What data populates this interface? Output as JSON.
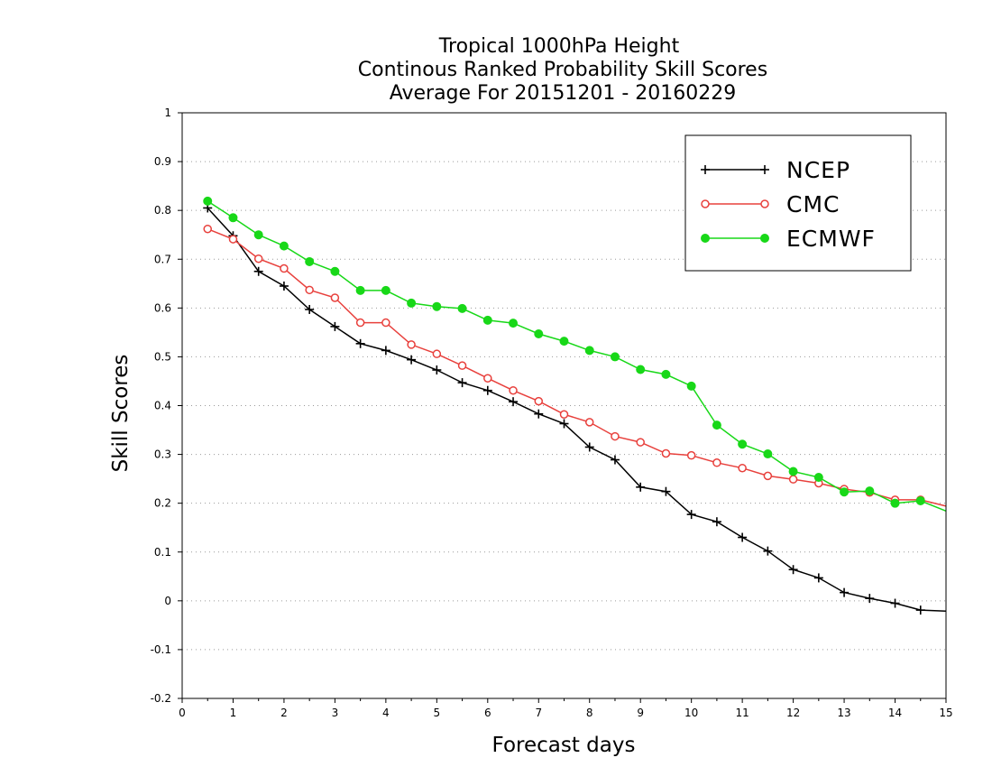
{
  "chart_data": {
    "type": "line",
    "title": [
      "Tropical 1000hPa Height",
      "Continous Ranked Probability Skill Scores",
      "Average For 20151201 - 20160229"
    ],
    "xlabel": "Forecast days",
    "ylabel": "Skill Scores",
    "xlim": [
      0,
      15
    ],
    "ylim": [
      -0.2,
      1
    ],
    "xticks": [
      0,
      1,
      2,
      3,
      4,
      5,
      6,
      7,
      8,
      9,
      10,
      11,
      12,
      13,
      14,
      15
    ],
    "yticks": [
      -0.2,
      -0.1,
      0,
      0.1,
      0.2,
      0.3,
      0.4,
      0.5,
      0.6,
      0.7,
      0.8,
      0.9,
      1
    ],
    "grid": "horizontal dotted",
    "legend_position": "top-right",
    "x": [
      0.5,
      1,
      1.5,
      2,
      2.5,
      3,
      3.5,
      4,
      4.5,
      5,
      5.5,
      6,
      6.5,
      7,
      7.5,
      8,
      8.5,
      9,
      9.5,
      10,
      10.5,
      11,
      11.5,
      12,
      12.5,
      13,
      13.5,
      14,
      14.5,
      15
    ],
    "series": [
      {
        "name": "NCEP",
        "color": "#000000",
        "marker": "plus",
        "values": [
          0.805,
          0.748,
          0.675,
          0.645,
          0.597,
          0.562,
          0.527,
          0.513,
          0.494,
          0.473,
          0.447,
          0.431,
          0.408,
          0.383,
          0.363,
          0.315,
          0.289,
          0.233,
          0.224,
          0.177,
          0.162,
          0.13,
          0.102,
          0.064,
          0.047,
          0.017,
          0.005,
          -0.005,
          -0.019,
          -0.021
        ]
      },
      {
        "name": "CMC",
        "color": "#e8403c",
        "marker": "open-circle",
        "values": [
          0.762,
          0.741,
          0.701,
          0.681,
          0.637,
          0.621,
          0.57,
          0.57,
          0.525,
          0.506,
          0.482,
          0.456,
          0.431,
          0.409,
          0.382,
          0.366,
          0.337,
          0.325,
          0.302,
          0.298,
          0.283,
          0.272,
          0.256,
          0.249,
          0.241,
          0.229,
          0.222,
          0.207,
          0.207,
          0.194
        ]
      },
      {
        "name": "ECMWF",
        "color": "#18d818",
        "marker": "filled-circle",
        "values": [
          0.819,
          0.785,
          0.75,
          0.727,
          0.695,
          0.675,
          0.636,
          0.636,
          0.61,
          0.603,
          0.599,
          0.575,
          0.569,
          0.547,
          0.532,
          0.513,
          0.5,
          0.474,
          0.464,
          0.44,
          0.36,
          0.321,
          0.301,
          0.265,
          0.253,
          0.223,
          0.225,
          0.2,
          0.205,
          0.184
        ]
      }
    ]
  }
}
